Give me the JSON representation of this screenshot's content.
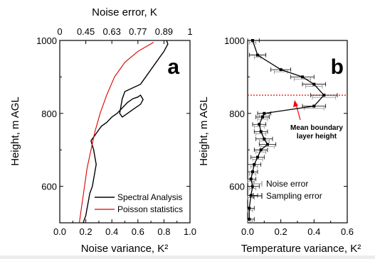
{
  "chart_data": [
    {
      "panel_label": "a",
      "type": "line",
      "xlabel": "Noise variance, K²",
      "ylabel": "Height, m AGL",
      "top_xlabel": "Noise error, K",
      "xlim": [
        0,
        1.0
      ],
      "ylim": [
        500,
        1000
      ],
      "xticks": [
        "0.0",
        "0.2",
        "0.4",
        "0.6",
        "0.8",
        "1.0"
      ],
      "yticks": [
        "600",
        "800",
        "1000"
      ],
      "top_ticks": [
        {
          "label": "0",
          "value": 0.0
        },
        {
          "label": "0.45",
          "value": 0.2
        },
        {
          "label": "0.63",
          "value": 0.4
        },
        {
          "label": "0.77",
          "value": 0.6
        },
        {
          "label": "0.89",
          "value": 0.8
        },
        {
          "label": "1",
          "value": 1.0
        }
      ],
      "legend": {
        "position": "bottom-right",
        "entries": [
          "Spectral Analysis",
          "Poisson statistics"
        ]
      },
      "series": [
        {
          "name": "Spectral Analysis",
          "color": "#000000",
          "x": [
            0.18,
            0.2,
            0.21,
            0.22,
            0.23,
            0.25,
            0.26,
            0.27,
            0.28,
            0.27,
            0.26,
            0.25,
            0.24,
            0.26,
            0.28,
            0.3,
            0.32,
            0.36,
            0.4,
            0.44,
            0.48,
            0.52,
            0.56,
            0.6,
            0.62,
            0.64,
            0.62,
            0.58,
            0.54,
            0.5,
            0.48,
            0.46,
            0.48,
            0.5,
            0.62,
            0.68,
            0.74,
            0.8,
            0.83,
            0.82
          ],
          "y": [
            500,
            520,
            540,
            560,
            580,
            600,
            620,
            640,
            660,
            680,
            700,
            712,
            725,
            735,
            745,
            755,
            765,
            775,
            790,
            800,
            815,
            830,
            840,
            845,
            850,
            838,
            825,
            815,
            805,
            795,
            790,
            800,
            840,
            860,
            880,
            910,
            940,
            970,
            990,
            1000
          ]
        },
        {
          "name": "Poisson statistics",
          "color": "#dd0000",
          "x": [
            0.15,
            0.17,
            0.19,
            0.21,
            0.24,
            0.27,
            0.31,
            0.36,
            0.42,
            0.5,
            0.6,
            0.72
          ],
          "y": [
            500,
            550,
            600,
            650,
            700,
            750,
            800,
            850,
            900,
            940,
            970,
            995
          ]
        }
      ]
    },
    {
      "panel_label": "b",
      "type": "line",
      "xlabel": "Temperature variance, K²",
      "ylabel": "Height, m AGL",
      "xlim": [
        0,
        0.6
      ],
      "ylim": [
        500,
        1000
      ],
      "xticks": [
        "0.0",
        "0.2",
        "0.4",
        "0.6"
      ],
      "yticks": [
        "600",
        "800",
        "1000"
      ],
      "annotation": {
        "text_lines": [
          "Mean boundary",
          "layer height"
        ],
        "color": "#ff0000",
        "height": 850
      },
      "legend": {
        "position": "bottom-right",
        "entries": [
          "Noise error",
          "Sampling error"
        ]
      },
      "series": [
        {
          "name": "Temperature variance",
          "color": "#000000",
          "x": [
            0.03,
            0.06,
            0.2,
            0.33,
            0.4,
            0.46,
            0.4,
            0.1,
            0.09,
            0.07,
            0.08,
            0.1,
            0.12,
            0.08,
            0.06,
            0.04,
            0.03,
            0.02,
            0.03,
            0.02,
            0.01,
            0.01
          ],
          "y": [
            1000,
            960,
            920,
            900,
            880,
            850,
            820,
            800,
            790,
            770,
            750,
            730,
            715,
            700,
            680,
            660,
            640,
            620,
            600,
            575,
            540,
            510
          ],
          "error_noise": [
            0.02,
            0.02,
            0.04,
            0.05,
            0.05,
            0.07,
            0.06,
            0.03,
            0.03,
            0.03,
            0.03,
            0.03,
            0.04,
            0.03,
            0.03,
            0.02,
            0.02,
            0.02,
            0.02,
            0.02,
            0.02,
            0.02
          ],
          "error_sampling": [
            0.04,
            0.05,
            0.06,
            0.07,
            0.07,
            0.08,
            0.07,
            0.04,
            0.04,
            0.04,
            0.04,
            0.05,
            0.05,
            0.04,
            0.04,
            0.04,
            0.03,
            0.03,
            0.04,
            0.04,
            0.03,
            0.03
          ]
        }
      ]
    }
  ]
}
